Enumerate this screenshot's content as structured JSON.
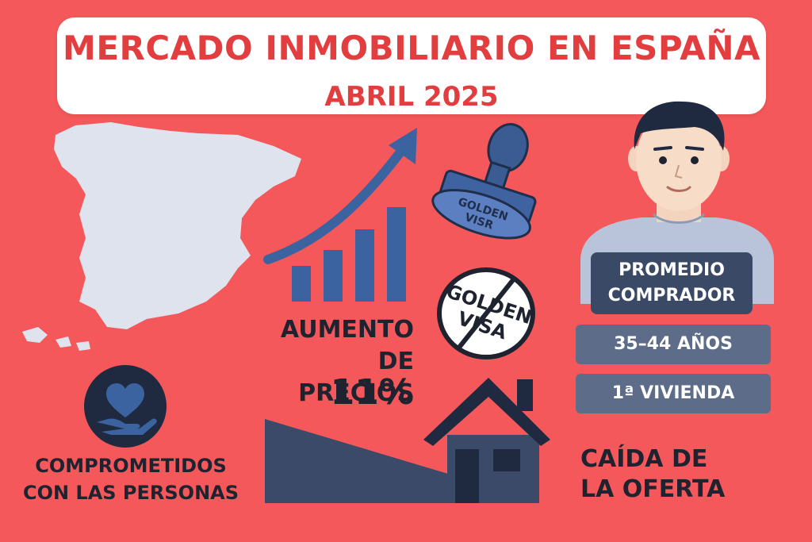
{
  "title": {
    "main": "MERCADO INMOBILIARIO EN ESPAÑA",
    "subtitle": "ABRIL 2025"
  },
  "prices": {
    "label_line1": "AUMENTO DE",
    "label_line2": "PRECIOS",
    "value": "11%"
  },
  "golden_visa": {
    "stamp_line1": "GOLDEN",
    "stamp_line2": "VISR",
    "badge_line1": "GOLDEN",
    "badge_line2": "VISA"
  },
  "buyer": {
    "title_line1": "PROMEDIO",
    "title_line2": "COMPRADOR",
    "age": "35–44 AÑOS",
    "home": "1ª VIVIENDA"
  },
  "people": {
    "line1": "COMPROMETIDOS",
    "line2": "CON LAS PERSONAS"
  },
  "supply": {
    "line1": "CAÍDA DE",
    "line2": "LA OFERTA"
  },
  "icons": [
    "spain-map-icon",
    "rising-bars-icon",
    "trend-arrow-icon",
    "stamp-icon",
    "crossed-badge-icon",
    "heart-hand-icon",
    "house-icon",
    "person-icon"
  ],
  "colors": {
    "background": "#f4585a",
    "title_red": "#e23d3f",
    "navy": "#3a4a66",
    "slate": "#5d6c88",
    "blue": "#3b63a0",
    "map": "#dfe3ee",
    "dark_text": "#1f2330"
  }
}
